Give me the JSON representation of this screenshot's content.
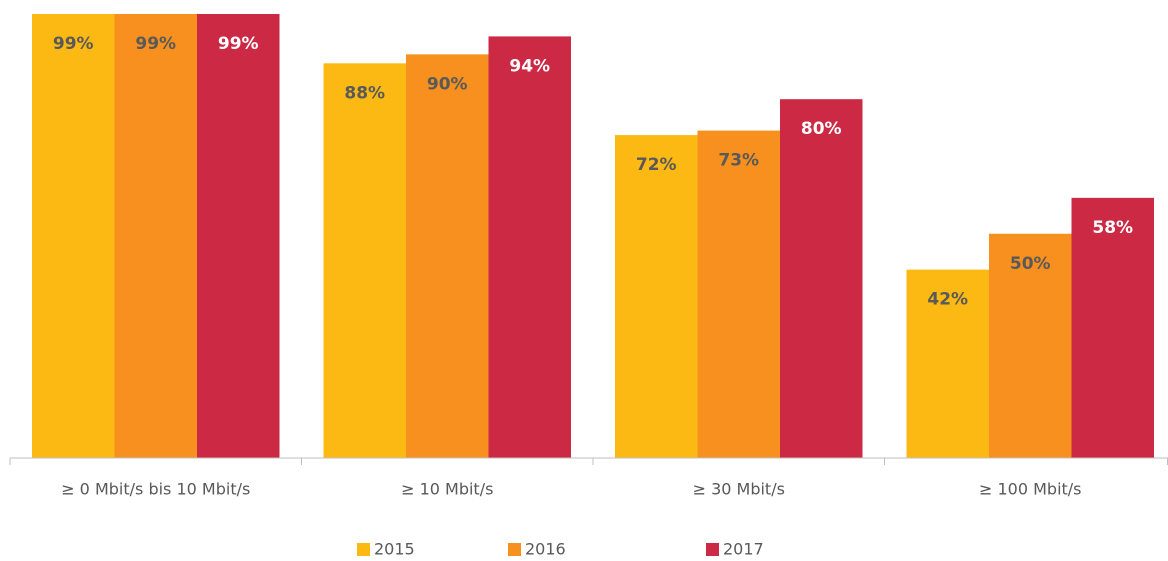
{
  "chart_data": {
    "type": "bar",
    "categories": [
      "≥ 0 Mbit/s bis 10 Mbit/s",
      "≥ 10 Mbit/s",
      "≥ 30 Mbit/s",
      "≥ 100 Mbit/s"
    ],
    "series": [
      {
        "name": "2015",
        "color": "#fdb913",
        "values": [
          99,
          88,
          72,
          42
        ],
        "value_labels": [
          "99%",
          "88%",
          "72%",
          "42%"
        ]
      },
      {
        "name": "2016",
        "color": "#f7901e",
        "values": [
          99,
          90,
          73,
          50
        ],
        "value_labels": [
          "99%",
          "90%",
          "73%",
          "50%"
        ]
      },
      {
        "name": "2017",
        "color": "#cb2944",
        "values": [
          99,
          94,
          80,
          58
        ],
        "value_labels": [
          "99%",
          "94%",
          "80%",
          "58%"
        ]
      }
    ],
    "ylim": [
      0,
      100
    ]
  }
}
